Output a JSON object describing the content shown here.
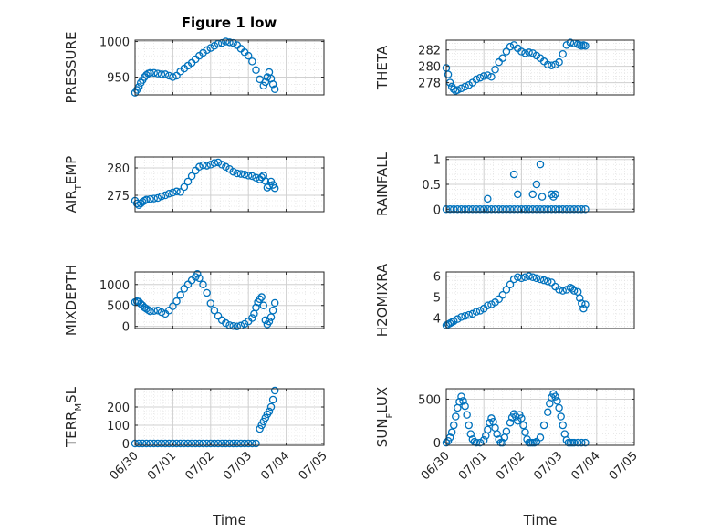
{
  "figure": {
    "title": "Figure 1 low",
    "marker_color": "#0072BD",
    "axis_color": "#262626",
    "grid_color": "#dcdcdc",
    "xlabel": "Time",
    "x_ticks": [
      "06/30",
      "07/01",
      "07/02",
      "07/03",
      "07/04",
      "07/05"
    ]
  },
  "chart_data": [
    {
      "type": "scatter",
      "title": "Figure 1 low",
      "ylabel": "PRESSURE",
      "xlim": [
        "06/30",
        "07/05"
      ],
      "ylim": [
        925,
        1002
      ],
      "yticks": [
        950,
        1000
      ],
      "grid": "on",
      "marker": "circle",
      "x": [
        0,
        0.05,
        0.1,
        0.15,
        0.2,
        0.25,
        0.3,
        0.35,
        0.4,
        0.5,
        0.6,
        0.7,
        0.8,
        0.9,
        1.0,
        1.1,
        1.2,
        1.3,
        1.4,
        1.5,
        1.6,
        1.7,
        1.8,
        1.9,
        2.0,
        2.1,
        2.2,
        2.3,
        2.4,
        2.5,
        2.6,
        2.7,
        2.8,
        2.9,
        3.0,
        3.1,
        3.2,
        3.3,
        3.4,
        3.45,
        3.5,
        3.55,
        3.6,
        3.65,
        3.7
      ],
      "y": [
        928,
        932,
        936,
        942,
        946,
        950,
        953,
        955,
        956,
        956,
        955,
        954,
        954,
        952,
        950,
        952,
        958,
        962,
        966,
        970,
        975,
        980,
        984,
        988,
        991,
        994,
        997,
        998,
        1000,
        999,
        998,
        995,
        990,
        985,
        980,
        972,
        960,
        947,
        938,
        943,
        950,
        957,
        948,
        940,
        933
      ]
    },
    {
      "type": "scatter",
      "ylabel": "THETA",
      "xlim": [
        "06/30",
        "07/05"
      ],
      "ylim": [
        276.5,
        283.2
      ],
      "yticks": [
        278,
        280,
        282
      ],
      "grid": "on",
      "marker": "circle",
      "x": [
        0,
        0.05,
        0.1,
        0.15,
        0.2,
        0.25,
        0.3,
        0.4,
        0.5,
        0.6,
        0.7,
        0.8,
        0.9,
        1.0,
        1.1,
        1.2,
        1.3,
        1.4,
        1.5,
        1.6,
        1.7,
        1.8,
        1.9,
        2.0,
        2.1,
        2.2,
        2.3,
        2.4,
        2.5,
        2.6,
        2.7,
        2.8,
        2.9,
        3.0,
        3.1,
        3.2,
        3.3,
        3.4,
        3.5,
        3.55,
        3.6,
        3.65,
        3.7
      ],
      "y": [
        279.8,
        279,
        278,
        277.5,
        277.2,
        277,
        277.1,
        277.3,
        277.5,
        277.7,
        278,
        278.4,
        278.6,
        278.8,
        278.9,
        278.7,
        279.6,
        280.5,
        281,
        281.8,
        282.4,
        282.6,
        282.2,
        281.8,
        281.6,
        281.7,
        281.6,
        281.3,
        281,
        280.6,
        280.2,
        280.1,
        280.2,
        280.5,
        281.5,
        282.6,
        282.9,
        282.8,
        282.7,
        282.6,
        282.5,
        282.6,
        282.5
      ]
    },
    {
      "type": "scatter",
      "ylabel": "AIR_TEMP",
      "xlim": [
        "06/30",
        "07/05"
      ],
      "ylim": [
        272,
        282
      ],
      "yticks": [
        275,
        280
      ],
      "grid": "on",
      "marker": "circle",
      "x": [
        0,
        0.05,
        0.1,
        0.15,
        0.2,
        0.25,
        0.3,
        0.4,
        0.5,
        0.6,
        0.7,
        0.8,
        0.9,
        1.0,
        1.1,
        1.2,
        1.3,
        1.4,
        1.5,
        1.6,
        1.7,
        1.8,
        1.9,
        2.0,
        2.1,
        2.2,
        2.3,
        2.4,
        2.5,
        2.6,
        2.7,
        2.8,
        2.9,
        3.0,
        3.1,
        3.2,
        3.3,
        3.35,
        3.4,
        3.45,
        3.5,
        3.55,
        3.6,
        3.65,
        3.7
      ],
      "y": [
        274,
        273.5,
        273.2,
        273.5,
        273.8,
        274,
        274.2,
        274.3,
        274.4,
        274.5,
        274.8,
        275,
        275.3,
        275.5,
        275.7,
        275.6,
        276.5,
        277.5,
        278.5,
        279.5,
        280.2,
        280.5,
        280.4,
        280.6,
        280.9,
        281,
        280.6,
        280.2,
        279.8,
        279.3,
        279,
        278.9,
        278.8,
        278.6,
        278.5,
        278.2,
        277.9,
        278.3,
        278.6,
        277.6,
        276.4,
        276.8,
        277.5,
        276.9,
        276.3
      ]
    },
    {
      "type": "scatter",
      "ylabel": "RAINFALL",
      "xlim": [
        "06/30",
        "07/05"
      ],
      "ylim": [
        -0.05,
        1.05
      ],
      "yticks": [
        0,
        0.5,
        1
      ],
      "grid": "on",
      "marker": "circle",
      "x": [
        0,
        0.1,
        0.2,
        0.3,
        0.4,
        0.5,
        0.6,
        0.7,
        0.8,
        0.9,
        1.0,
        1.1,
        1.2,
        1.3,
        1.4,
        1.5,
        1.6,
        1.7,
        1.8,
        1.9,
        2.0,
        2.1,
        2.2,
        2.3,
        2.4,
        2.5,
        2.6,
        2.7,
        2.8,
        2.9,
        3.0,
        3.1,
        3.2,
        3.3,
        3.4,
        3.5,
        3.6,
        3.7,
        1.1,
        1.8,
        1.9,
        2.3,
        2.4,
        2.5,
        2.55,
        2.8,
        2.85,
        2.9
      ],
      "y": [
        0,
        0,
        0,
        0,
        0,
        0,
        0,
        0,
        0,
        0,
        0,
        0,
        0,
        0,
        0,
        0,
        0,
        0,
        0,
        0,
        0,
        0,
        0,
        0,
        0,
        0,
        0,
        0,
        0,
        0,
        0,
        0,
        0,
        0,
        0,
        0,
        0,
        0,
        0.21,
        0.7,
        0.3,
        0.3,
        0.5,
        0.9,
        0.25,
        0.3,
        0.25,
        0.3
      ]
    },
    {
      "type": "scatter",
      "ylabel": "MIXDEPTH",
      "xlim": [
        "06/30",
        "07/05"
      ],
      "ylim": [
        -50,
        1300
      ],
      "yticks": [
        0,
        500,
        1000
      ],
      "grid": "on",
      "marker": "circle",
      "x": [
        0,
        0.05,
        0.1,
        0.15,
        0.2,
        0.25,
        0.3,
        0.35,
        0.4,
        0.5,
        0.6,
        0.7,
        0.8,
        0.9,
        1.0,
        1.1,
        1.2,
        1.3,
        1.4,
        1.5,
        1.6,
        1.65,
        1.7,
        1.8,
        1.9,
        2.0,
        2.1,
        2.2,
        2.3,
        2.4,
        2.5,
        2.6,
        2.7,
        2.8,
        2.9,
        3.0,
        3.1,
        3.15,
        3.2,
        3.25,
        3.3,
        3.35,
        3.4,
        3.45,
        3.5,
        3.55,
        3.6,
        3.65,
        3.7
      ],
      "y": [
        580,
        600,
        590,
        540,
        500,
        450,
        420,
        390,
        360,
        370,
        380,
        340,
        300,
        380,
        480,
        600,
        750,
        900,
        1000,
        1100,
        1180,
        1250,
        1150,
        1000,
        800,
        550,
        380,
        250,
        150,
        80,
        30,
        10,
        0,
        20,
        60,
        120,
        200,
        300,
        450,
        580,
        650,
        700,
        500,
        150,
        50,
        120,
        220,
        380,
        560
      ]
    },
    {
      "type": "scatter",
      "ylabel": "H2OMIXRA",
      "xlim": [
        "06/30",
        "07/05"
      ],
      "ylim": [
        3.5,
        6.2
      ],
      "yticks": [
        4,
        5,
        6
      ],
      "grid": "on",
      "marker": "circle",
      "x": [
        0,
        0.05,
        0.1,
        0.15,
        0.2,
        0.3,
        0.4,
        0.5,
        0.6,
        0.7,
        0.8,
        0.9,
        1.0,
        1.1,
        1.2,
        1.3,
        1.4,
        1.5,
        1.6,
        1.7,
        1.8,
        1.9,
        2.0,
        2.1,
        2.2,
        2.3,
        2.4,
        2.5,
        2.6,
        2.7,
        2.8,
        2.9,
        3.0,
        3.1,
        3.2,
        3.3,
        3.35,
        3.4,
        3.5,
        3.55,
        3.6,
        3.65,
        3.7
      ],
      "y": [
        3.65,
        3.7,
        3.75,
        3.8,
        3.85,
        3.95,
        4.05,
        4.1,
        4.15,
        4.2,
        4.3,
        4.35,
        4.45,
        4.6,
        4.65,
        4.75,
        4.9,
        5.1,
        5.35,
        5.6,
        5.85,
        5.95,
        5.9,
        5.95,
        6.0,
        5.95,
        5.9,
        5.85,
        5.8,
        5.75,
        5.7,
        5.5,
        5.35,
        5.3,
        5.35,
        5.45,
        5.4,
        5.3,
        5.25,
        4.95,
        4.7,
        4.45,
        4.65
      ]
    },
    {
      "type": "scatter",
      "ylabel": "TERR_MSL",
      "xlim": [
        "06/30",
        "07/05"
      ],
      "ylim": [
        -10,
        300
      ],
      "yticks": [
        0,
        100,
        200
      ],
      "grid": "on",
      "marker": "circle",
      "x": [
        0,
        0.1,
        0.2,
        0.3,
        0.4,
        0.5,
        0.6,
        0.7,
        0.8,
        0.9,
        1.0,
        1.1,
        1.2,
        1.3,
        1.4,
        1.5,
        1.6,
        1.7,
        1.8,
        1.9,
        2.0,
        2.1,
        2.2,
        2.3,
        2.4,
        2.5,
        2.6,
        2.7,
        2.8,
        2.9,
        3.0,
        3.1,
        3.2,
        3.3,
        3.35,
        3.4,
        3.45,
        3.5,
        3.55,
        3.6,
        3.65,
        3.7
      ],
      "y": [
        0,
        0,
        0,
        0,
        0,
        0,
        0,
        0,
        0,
        0,
        0,
        0,
        0,
        0,
        0,
        0,
        0,
        0,
        0,
        0,
        0,
        0,
        0,
        0,
        0,
        0,
        0,
        0,
        0,
        0,
        0,
        0,
        0,
        80,
        100,
        120,
        140,
        160,
        175,
        200,
        240,
        290
      ]
    },
    {
      "type": "scatter",
      "ylabel": "SUN_FLUX",
      "xlim": [
        "06/30",
        "07/05"
      ],
      "ylim": [
        -30,
        620
      ],
      "yticks": [
        0,
        500
      ],
      "grid": "on",
      "marker": "circle",
      "x": [
        0,
        0.05,
        0.1,
        0.15,
        0.2,
        0.25,
        0.3,
        0.35,
        0.4,
        0.45,
        0.5,
        0.55,
        0.6,
        0.65,
        0.7,
        0.75,
        0.8,
        0.9,
        1.0,
        1.05,
        1.1,
        1.15,
        1.2,
        1.25,
        1.3,
        1.35,
        1.4,
        1.45,
        1.5,
        1.55,
        1.6,
        1.7,
        1.75,
        1.8,
        1.85,
        1.9,
        1.95,
        2.0,
        2.05,
        2.1,
        2.15,
        2.2,
        2.25,
        2.3,
        2.35,
        2.4,
        2.5,
        2.6,
        2.7,
        2.75,
        2.8,
        2.85,
        2.9,
        2.95,
        3.0,
        3.05,
        3.1,
        3.15,
        3.2,
        3.25,
        3.3,
        3.35,
        3.4,
        3.5,
        3.6,
        3.7
      ],
      "y": [
        0,
        20,
        60,
        120,
        200,
        300,
        400,
        470,
        530,
        480,
        420,
        320,
        200,
        100,
        40,
        10,
        0,
        0,
        30,
        80,
        150,
        230,
        280,
        240,
        170,
        100,
        40,
        0,
        0,
        60,
        130,
        230,
        290,
        330,
        300,
        250,
        320,
        280,
        200,
        120,
        40,
        0,
        0,
        0,
        0,
        10,
        60,
        200,
        350,
        450,
        520,
        560,
        530,
        480,
        400,
        300,
        200,
        100,
        30,
        0,
        0,
        0,
        0,
        0,
        0,
        0
      ]
    }
  ]
}
